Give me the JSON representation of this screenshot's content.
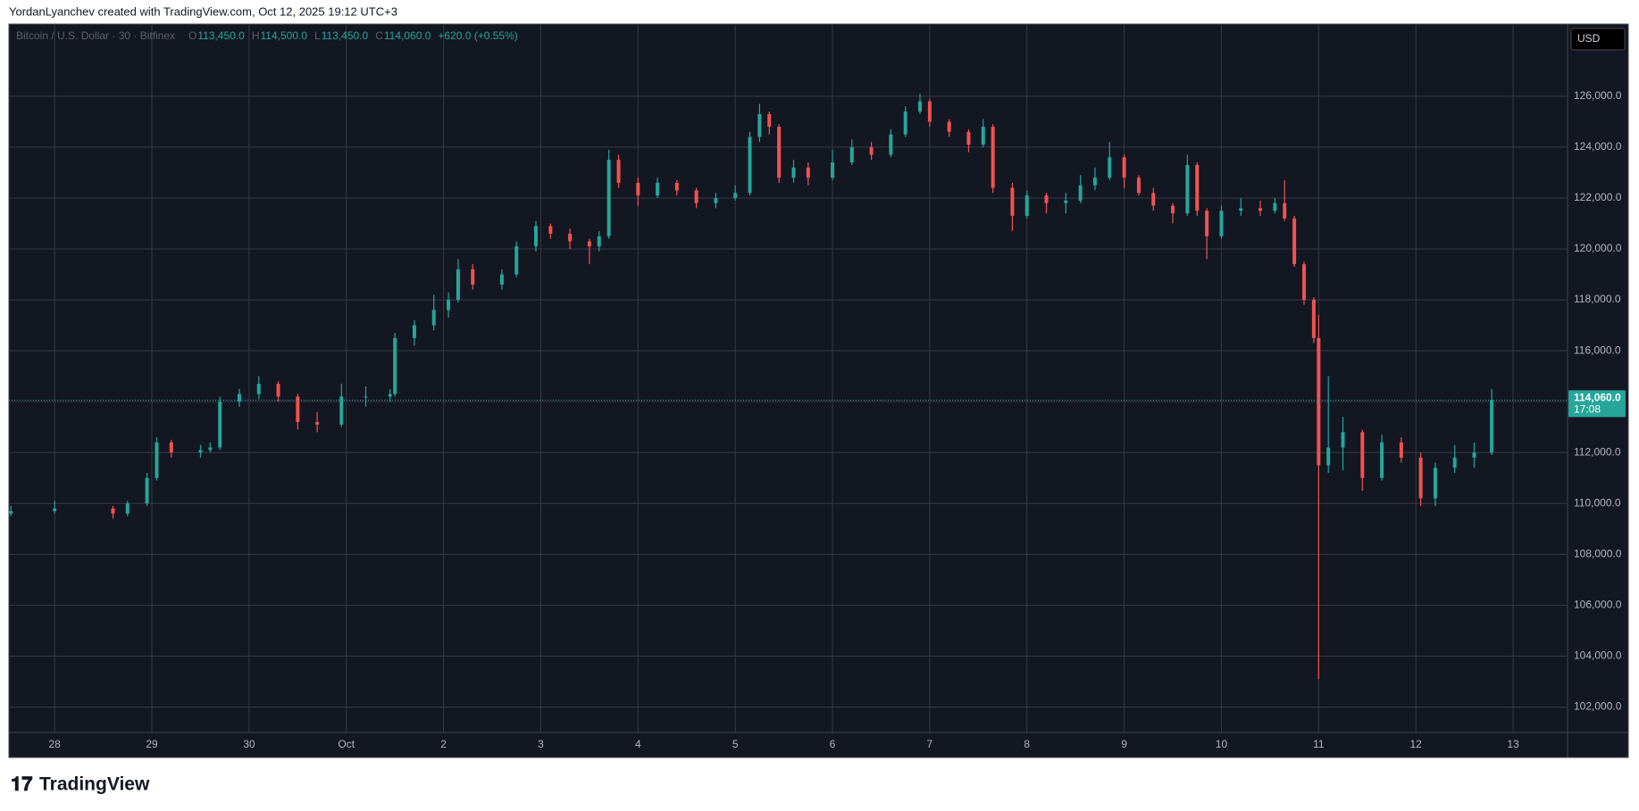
{
  "attribution": "YordanLyanchev created with TradingView.com, Oct 12, 2025 19:12 UTC+3",
  "brand": "TradingView",
  "chart_data": {
    "type": "candlestick",
    "symbol": "Bitcoin / U.S. Dollar · 30 · Bitfinex",
    "ohlc": [
      {
        "key": "O",
        "value": "113,450.0"
      },
      {
        "key": "H",
        "value": "114,500.0"
      },
      {
        "key": "L",
        "value": "113,450.0"
      },
      {
        "key": "C",
        "value": "114,060.0"
      }
    ],
    "change": "+620.0 (+0.55%)",
    "currency": "USD",
    "last_price": {
      "value": 114060,
      "label": "114,060.0"
    },
    "countdown": "17:08",
    "up_color": "#26a69a",
    "down_color": "#ef5350",
    "grid": true,
    "xlim": [
      -0.47,
      15.56
    ],
    "xticks": [
      {
        "value": 0,
        "label": "28"
      },
      {
        "value": 1,
        "label": "29"
      },
      {
        "value": 2,
        "label": "30"
      },
      {
        "value": 3,
        "label": "Oct"
      },
      {
        "value": 4,
        "label": "2"
      },
      {
        "value": 5,
        "label": "3"
      },
      {
        "value": 6,
        "label": "4"
      },
      {
        "value": 7,
        "label": "5"
      },
      {
        "value": 8,
        "label": "6"
      },
      {
        "value": 9,
        "label": "7"
      },
      {
        "value": 10,
        "label": "8"
      },
      {
        "value": 11,
        "label": "9"
      },
      {
        "value": 12,
        "label": "10"
      },
      {
        "value": 13,
        "label": "11"
      },
      {
        "value": 14,
        "label": "12"
      },
      {
        "value": 15,
        "label": "13"
      }
    ],
    "ylim": [
      101000,
      128800
    ],
    "yticks": [
      {
        "value": 102000,
        "label": "102,000.0"
      },
      {
        "value": 104000,
        "label": "104,000.0"
      },
      {
        "value": 106000,
        "label": "106,000.0"
      },
      {
        "value": 108000,
        "label": "108,000.0"
      },
      {
        "value": 110000,
        "label": "110,000.0"
      },
      {
        "value": 112000,
        "label": "112,000.0"
      },
      {
        "value": 114000,
        "label": "114,000.0"
      },
      {
        "value": 116000,
        "label": "116,000.0"
      },
      {
        "value": 118000,
        "label": "118,000.0"
      },
      {
        "value": 120000,
        "label": "120,000.0"
      },
      {
        "value": 122000,
        "label": "122,000.0"
      },
      {
        "value": 124000,
        "label": "124,000.0"
      },
      {
        "value": 126000,
        "label": "126,000.0"
      }
    ],
    "candles": {
      "x": [
        -0.45,
        0,
        0.6,
        0.75,
        0.95,
        1.05,
        1.2,
        1.5,
        1.6,
        1.7,
        1.9,
        2.1,
        2.3,
        2.5,
        2.7,
        2.95,
        3.2,
        3.45,
        3.5,
        3.7,
        3.9,
        4.05,
        4.15,
        4.3,
        4.6,
        4.75,
        4.95,
        5.1,
        5.3,
        5.5,
        5.6,
        5.7,
        5.8,
        6.0,
        6.2,
        6.4,
        6.6,
        6.8,
        7.0,
        7.15,
        7.25,
        7.35,
        7.45,
        7.6,
        7.75,
        8.0,
        8.2,
        8.4,
        8.6,
        8.75,
        8.9,
        9.0,
        9.2,
        9.4,
        9.55,
        9.65,
        9.85,
        10.0,
        10.2,
        10.4,
        10.55,
        10.7,
        10.85,
        11.0,
        11.15,
        11.3,
        11.5,
        11.65,
        11.75,
        11.85,
        12.0,
        12.2,
        12.4,
        12.55,
        12.65,
        12.75,
        12.85,
        12.95,
        13.0,
        13.1,
        13.25,
        13.45,
        13.65,
        13.85,
        14.05,
        14.2,
        14.4,
        14.6,
        14.78
      ],
      "open": [
        109600,
        109700,
        109800,
        109600,
        110000,
        111000,
        112400,
        112000,
        112100,
        112200,
        114000,
        114300,
        114700,
        114200,
        113200,
        113100,
        114200,
        114200,
        114300,
        116500,
        117000,
        117600,
        118000,
        119200,
        118600,
        119000,
        120100,
        120900,
        120600,
        120300,
        120100,
        120500,
        123500,
        122600,
        122100,
        122600,
        122300,
        121800,
        122000,
        122200,
        124400,
        125300,
        124800,
        122800,
        123200,
        122800,
        123400,
        124000,
        123700,
        124500,
        125400,
        125800,
        125000,
        124600,
        124100,
        124800,
        122400,
        121300,
        122100,
        121800,
        121900,
        122500,
        122800,
        123600,
        122800,
        122200,
        121700,
        121400,
        123300,
        121500,
        120500,
        121500,
        121600,
        121500,
        121800,
        121200,
        119400,
        118000,
        116500,
        111500,
        112200,
        112800,
        111000,
        112400,
        111800,
        110200,
        111400,
        111800,
        112000
      ],
      "high": [
        109900,
        110100,
        109900,
        110100,
        111200,
        112600,
        112500,
        112300,
        112400,
        114200,
        114500,
        115000,
        114800,
        114300,
        113600,
        114700,
        114600,
        114500,
        116700,
        117200,
        118200,
        118300,
        119600,
        119400,
        119200,
        120300,
        121100,
        121000,
        120800,
        120400,
        120700,
        123900,
        123700,
        122800,
        122800,
        122700,
        122400,
        122200,
        122500,
        124600,
        125700,
        125400,
        124900,
        123500,
        123400,
        123900,
        124300,
        124200,
        124700,
        125600,
        126100,
        125900,
        125100,
        124700,
        125100,
        124900,
        122600,
        122300,
        122200,
        122200,
        122900,
        123200,
        124200,
        123700,
        122900,
        122400,
        121800,
        123700,
        123400,
        121600,
        121700,
        122000,
        121900,
        122000,
        122700,
        121300,
        119500,
        118100,
        117400,
        115000,
        113400,
        112900,
        112700,
        112600,
        112000,
        111600,
        112300,
        112400,
        114500
      ],
      "low": [
        109500,
        109600,
        109400,
        109500,
        109900,
        110900,
        111800,
        111800,
        112000,
        112100,
        113800,
        114100,
        114000,
        112900,
        112800,
        113000,
        113800,
        114000,
        114200,
        116200,
        116800,
        117300,
        117900,
        118400,
        118400,
        118900,
        119900,
        120400,
        120000,
        119400,
        119900,
        120400,
        122400,
        121700,
        122000,
        122100,
        121600,
        121600,
        121900,
        122100,
        124200,
        124500,
        122600,
        122600,
        122500,
        122700,
        123300,
        123500,
        123600,
        124400,
        125300,
        124800,
        124400,
        123800,
        124000,
        122200,
        120700,
        121200,
        121400,
        121400,
        121800,
        122300,
        122700,
        122400,
        122100,
        121500,
        121000,
        121300,
        121300,
        119600,
        120400,
        121300,
        121300,
        121400,
        121100,
        119300,
        117800,
        116300,
        103100,
        111200,
        111300,
        110500,
        110900,
        111600,
        109900,
        109900,
        111200,
        111400,
        111900
      ],
      "close": [
        109700,
        109800,
        109600,
        110000,
        111000,
        112400,
        112000,
        112100,
        112200,
        114000,
        114300,
        114700,
        114200,
        113200,
        113100,
        114200,
        114200,
        114300,
        116500,
        117000,
        117600,
        118000,
        119200,
        118600,
        119000,
        120100,
        120900,
        120600,
        120300,
        120100,
        120500,
        123500,
        122600,
        122100,
        122600,
        122300,
        121800,
        122000,
        122200,
        124400,
        125300,
        124800,
        122800,
        123200,
        122800,
        123400,
        124000,
        123700,
        124500,
        125400,
        125800,
        125000,
        124600,
        124100,
        124800,
        122400,
        121300,
        122100,
        121800,
        121900,
        122500,
        122800,
        123600,
        122800,
        122200,
        121700,
        121400,
        123300,
        121500,
        120500,
        121500,
        121600,
        121500,
        121800,
        121200,
        119400,
        118000,
        116500,
        111500,
        112200,
        112800,
        111000,
        112400,
        111800,
        110200,
        111400,
        111800,
        112000,
        114060
      ]
    }
  }
}
